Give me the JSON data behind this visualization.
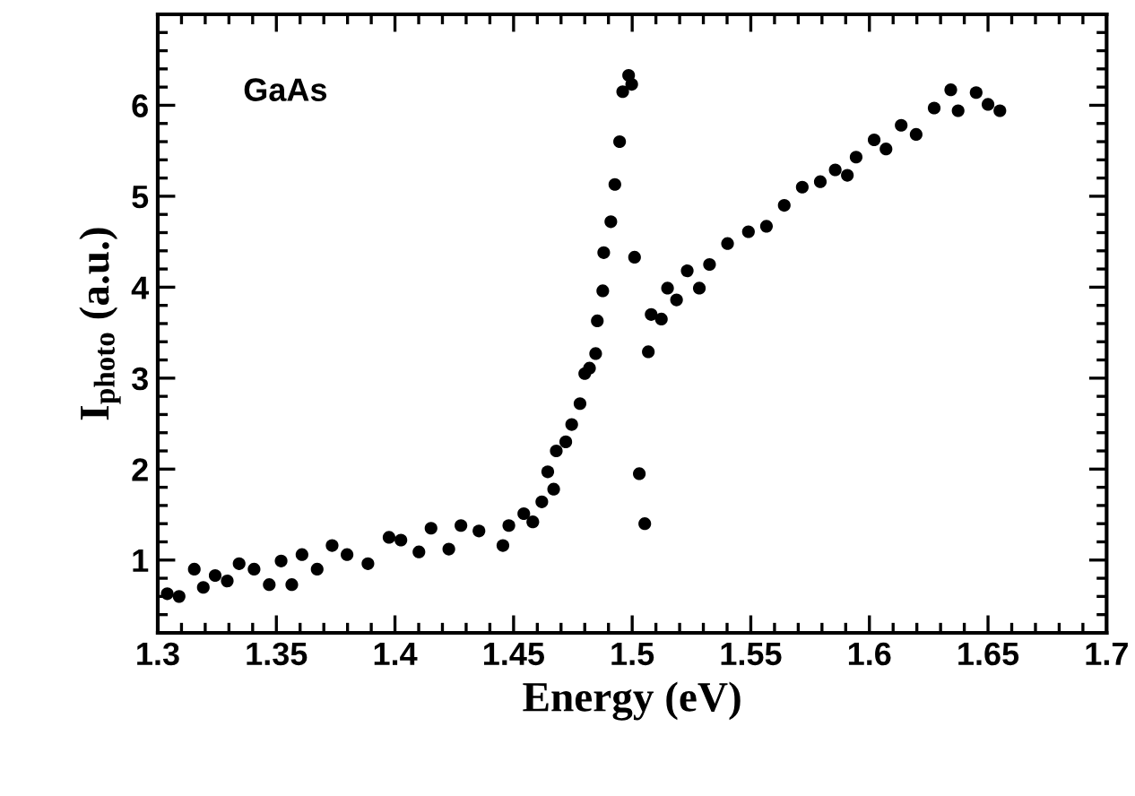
{
  "chart_data": {
    "type": "scatter",
    "xlabel": "Energy (eV)",
    "ylabel": "I$_{photo}$ (a.u.)",
    "annotations": [
      "GaAs"
    ],
    "xlim": [
      1.3,
      1.7
    ],
    "xticks": [
      1.3,
      1.35,
      1.4,
      1.45,
      1.5,
      1.55,
      1.6,
      1.65,
      1.7
    ],
    "ylim": [
      0.2,
      7
    ],
    "yticks": [
      1,
      2,
      3,
      4,
      5,
      6
    ],
    "grid": false,
    "legend": false,
    "marker": "circle",
    "series": [
      {
        "color": "#000000",
        "x": [
          1.304,
          1.309,
          1.3154,
          1.3192,
          1.3242,
          1.3293,
          1.3343,
          1.3406,
          1.347,
          1.352,
          1.3565,
          1.3608,
          1.3672,
          1.3735,
          1.3798,
          1.3886,
          1.3975,
          1.4025,
          1.4101,
          1.4152,
          1.4227,
          1.4278,
          1.4354,
          1.4455,
          1.448,
          1.4543,
          1.4581,
          1.4619,
          1.4644,
          1.4669,
          1.468,
          1.472,
          1.4745,
          1.478,
          1.48,
          1.482,
          1.4846,
          1.4853,
          1.4876,
          1.488,
          1.491,
          1.4927,
          1.4947,
          1.496,
          1.4985,
          1.4998,
          1.501,
          1.503,
          1.5053,
          1.5068,
          1.508,
          1.5123,
          1.5149,
          1.5187,
          1.5232,
          1.5283,
          1.5326,
          1.5402,
          1.549,
          1.5566,
          1.5641,
          1.5717,
          1.5793,
          1.5856,
          1.5907,
          1.5944,
          1.602,
          1.607,
          1.6134,
          1.6197,
          1.6273,
          1.6343,
          1.6374,
          1.645,
          1.65,
          1.655
        ],
        "values": [
          0.63,
          0.6,
          0.9,
          0.7,
          0.83,
          0.77,
          0.96,
          0.9,
          0.73,
          0.99,
          0.73,
          1.06,
          0.9,
          1.16,
          1.06,
          0.96,
          1.25,
          1.22,
          1.09,
          1.35,
          1.12,
          1.38,
          1.32,
          1.16,
          1.38,
          1.51,
          1.42,
          1.64,
          1.97,
          1.78,
          2.2,
          2.3,
          2.49,
          2.72,
          3.05,
          3.11,
          3.27,
          3.63,
          3.96,
          4.38,
          4.72,
          5.13,
          5.6,
          6.15,
          6.33,
          6.23,
          4.33,
          1.95,
          1.4,
          3.29,
          3.7,
          3.65,
          3.99,
          3.86,
          4.18,
          3.99,
          4.25,
          4.48,
          4.61,
          4.67,
          4.9,
          5.1,
          5.16,
          5.29,
          5.23,
          5.43,
          5.62,
          5.52,
          5.78,
          5.68,
          5.97,
          6.17,
          5.94,
          6.14,
          6.01,
          5.94
        ]
      }
    ]
  }
}
